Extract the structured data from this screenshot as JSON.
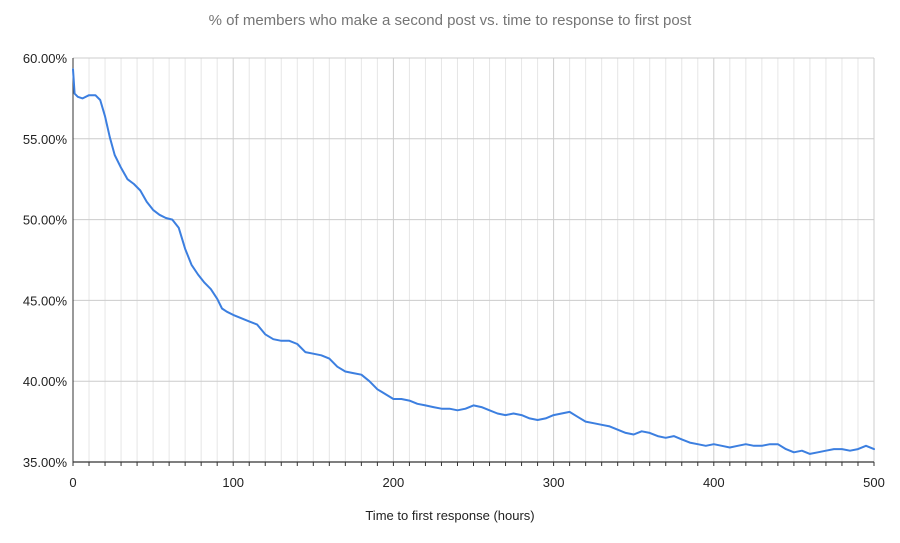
{
  "chart_data": {
    "type": "line",
    "title": "% of members who make a second post vs. time to response to first post",
    "xlabel": "Time to first response (hours)",
    "ylabel": "",
    "xlim": [
      0,
      500
    ],
    "ylim": [
      35,
      60
    ],
    "x_ticks": [
      0,
      100,
      200,
      300,
      400,
      500
    ],
    "x_tick_labels": [
      "0",
      "100",
      "200",
      "300",
      "400",
      "500"
    ],
    "y_ticks": [
      35,
      40,
      45,
      50,
      55,
      60
    ],
    "y_tick_labels": [
      "35.00%",
      "40.00%",
      "45.00%",
      "50.00%",
      "55.00%",
      "60.00%"
    ],
    "grid": true,
    "legend": "none",
    "series_color": "#3c7fe0",
    "series": [
      {
        "x": [
          0,
          1,
          3,
          6,
          10,
          14,
          17,
          20,
          23,
          26,
          30,
          34,
          38,
          42,
          46,
          50,
          54,
          58,
          62,
          66,
          70,
          74,
          78,
          82,
          86,
          90,
          93,
          96,
          100,
          105,
          110,
          115,
          120,
          125,
          130,
          135,
          140,
          145,
          150,
          155,
          160,
          165,
          170,
          175,
          180,
          185,
          190,
          195,
          200,
          205,
          210,
          215,
          220,
          225,
          230,
          235,
          240,
          245,
          250,
          255,
          260,
          265,
          270,
          275,
          280,
          285,
          290,
          295,
          300,
          305,
          310,
          315,
          320,
          325,
          330,
          335,
          340,
          345,
          350,
          355,
          360,
          365,
          370,
          375,
          380,
          385,
          390,
          395,
          400,
          405,
          410,
          415,
          420,
          425,
          430,
          435,
          440,
          445,
          450,
          455,
          460,
          465,
          470,
          475,
          480,
          485,
          490,
          495,
          500
        ],
        "y": [
          59.3,
          57.8,
          57.6,
          57.5,
          57.7,
          57.7,
          57.4,
          56.4,
          55.1,
          54.0,
          53.2,
          52.5,
          52.2,
          51.8,
          51.1,
          50.6,
          50.3,
          50.1,
          50.0,
          49.5,
          48.2,
          47.2,
          46.6,
          46.1,
          45.7,
          45.1,
          44.5,
          44.3,
          44.1,
          43.9,
          43.7,
          43.5,
          42.9,
          42.6,
          42.5,
          42.5,
          42.3,
          41.8,
          41.7,
          41.6,
          41.4,
          40.9,
          40.6,
          40.5,
          40.4,
          40.0,
          39.5,
          39.2,
          38.9,
          38.9,
          38.8,
          38.6,
          38.5,
          38.4,
          38.3,
          38.3,
          38.2,
          38.3,
          38.5,
          38.4,
          38.2,
          38.0,
          37.9,
          38.0,
          37.9,
          37.7,
          37.6,
          37.7,
          37.9,
          38.0,
          38.1,
          37.8,
          37.5,
          37.4,
          37.3,
          37.2,
          37.0,
          36.8,
          36.7,
          36.9,
          36.8,
          36.6,
          36.5,
          36.6,
          36.4,
          36.2,
          36.1,
          36.0,
          36.1,
          36.0,
          35.9,
          36.0,
          36.1,
          36.0,
          36.0,
          36.1,
          36.1,
          35.8,
          35.6,
          35.7,
          35.5,
          35.6,
          35.7,
          35.8,
          35.8,
          35.7,
          35.8,
          36.0,
          35.8
        ]
      }
    ]
  }
}
